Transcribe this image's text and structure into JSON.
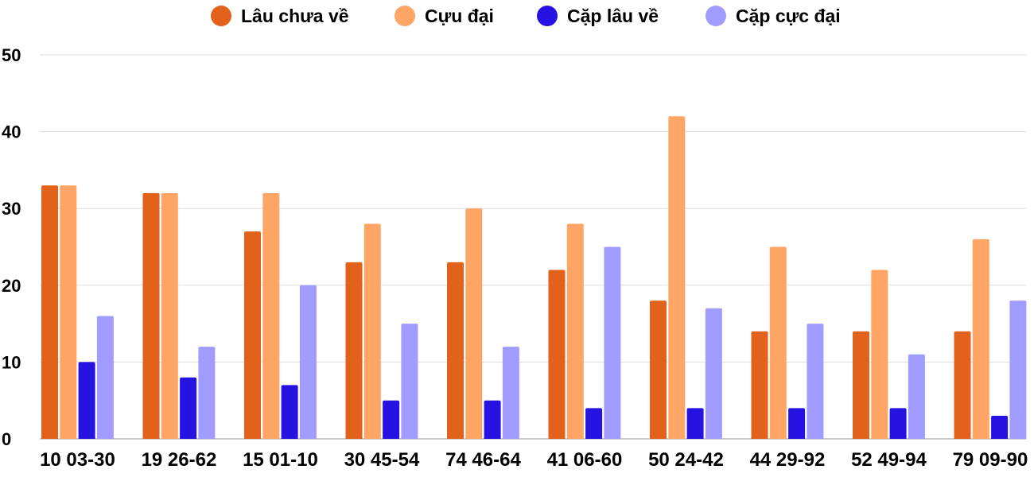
{
  "chart_data": {
    "type": "bar",
    "title": "",
    "xlabel": "",
    "ylabel": "",
    "ylim": [
      0,
      50
    ],
    "yticks": [
      0,
      10,
      20,
      30,
      40,
      50
    ],
    "grid": true,
    "legend_position": "top-center",
    "categories": [
      "10 03-30",
      "19 26-62",
      "15 01-10",
      "30 45-54",
      "74 46-64",
      "41 06-60",
      "50 24-42",
      "44 29-92",
      "52 49-94",
      "79 09-90"
    ],
    "series": [
      {
        "name": "Lâu chưa về",
        "color": "#e2621b",
        "values": [
          33,
          32,
          27,
          23,
          23,
          22,
          18,
          14,
          14,
          14
        ]
      },
      {
        "name": "Cựu đại",
        "color": "#ffa566",
        "values": [
          33,
          32,
          32,
          28,
          30,
          28,
          42,
          25,
          22,
          26
        ]
      },
      {
        "name": "Cặp lâu về",
        "color": "#2613e2",
        "values": [
          10,
          8,
          7,
          5,
          5,
          4,
          4,
          4,
          4,
          3
        ]
      },
      {
        "name": "Cặp cực đại",
        "color": "#a19cff",
        "values": [
          16,
          12,
          20,
          15,
          12,
          25,
          17,
          15,
          11,
          18
        ]
      }
    ]
  }
}
